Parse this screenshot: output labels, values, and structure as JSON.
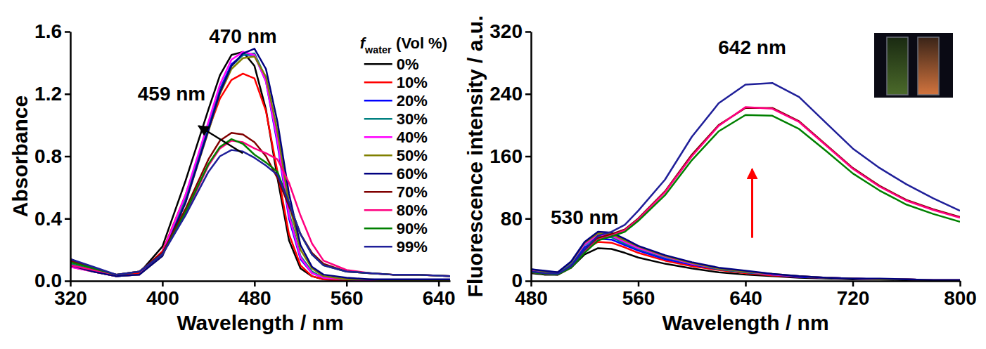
{
  "chart_data": [
    {
      "type": "line",
      "xlabel": "Wavelength / nm",
      "ylabel": "Absorbance",
      "x": [
        320,
        340,
        360,
        380,
        400,
        420,
        440,
        450,
        460,
        470,
        480,
        490,
        500,
        510,
        520,
        530,
        540,
        560,
        580,
        600,
        620,
        650
      ],
      "xlim": [
        320,
        650
      ],
      "xticks": [
        320,
        400,
        480,
        560,
        640
      ],
      "ylim": [
        0,
        1.6
      ],
      "yticks": [
        {
          "value": 0,
          "label": "0.0"
        },
        0.4,
        0.8,
        1.2,
        1.6
      ],
      "legend": "upper right",
      "legend_title": {
        "symbol": "f",
        "subscript": "water",
        "text": "(Vol %)"
      },
      "annotations": [
        {
          "text": "470 nm",
          "x": 470,
          "y": 1.57
        },
        {
          "text": "459 nm",
          "x": 408,
          "y": 1.2,
          "arrow": "from-lower-right"
        }
      ],
      "series": [
        {
          "name": "0%",
          "color": "#000000",
          "values": [
            0.14,
            0.08,
            0.03,
            0.05,
            0.22,
            0.64,
            1.1,
            1.32,
            1.45,
            1.47,
            1.38,
            1.1,
            0.66,
            0.26,
            0.08,
            0.03,
            0.01,
            0.0,
            0.0,
            0.0,
            0.0,
            0.0
          ]
        },
        {
          "name": "10%",
          "color": "#ff0000",
          "values": [
            0.09,
            0.06,
            0.03,
            0.05,
            0.19,
            0.55,
            0.97,
            1.17,
            1.29,
            1.33,
            1.3,
            1.09,
            0.7,
            0.3,
            0.1,
            0.03,
            0.01,
            0.0,
            0.0,
            0.0,
            0.0,
            0.0
          ]
        },
        {
          "name": "20%",
          "color": "#0000ff",
          "values": [
            0.1,
            0.06,
            0.03,
            0.04,
            0.17,
            0.53,
            0.99,
            1.23,
            1.39,
            1.45,
            1.45,
            1.28,
            0.88,
            0.4,
            0.14,
            0.05,
            0.02,
            0.01,
            0.0,
            0.0,
            0.0,
            0.0
          ]
        },
        {
          "name": "30%",
          "color": "#008080",
          "values": [
            0.11,
            0.07,
            0.03,
            0.04,
            0.17,
            0.52,
            0.98,
            1.22,
            1.38,
            1.45,
            1.46,
            1.3,
            0.92,
            0.44,
            0.16,
            0.06,
            0.02,
            0.01,
            0.0,
            0.0,
            0.0,
            0.0
          ]
        },
        {
          "name": "40%",
          "color": "#ff00ff",
          "values": [
            0.09,
            0.06,
            0.03,
            0.04,
            0.18,
            0.55,
            1.02,
            1.26,
            1.42,
            1.47,
            1.45,
            1.28,
            0.9,
            0.42,
            0.15,
            0.05,
            0.02,
            0.01,
            0.0,
            0.0,
            0.0,
            0.0
          ]
        },
        {
          "name": "50%",
          "color": "#808000",
          "values": [
            0.1,
            0.06,
            0.03,
            0.04,
            0.16,
            0.5,
            0.96,
            1.2,
            1.36,
            1.43,
            1.44,
            1.31,
            0.96,
            0.5,
            0.2,
            0.08,
            0.03,
            0.01,
            0.01,
            0.0,
            0.0,
            0.0
          ]
        },
        {
          "name": "60%",
          "color": "#000080",
          "values": [
            0.1,
            0.06,
            0.03,
            0.04,
            0.16,
            0.5,
            0.97,
            1.21,
            1.38,
            1.46,
            1.49,
            1.36,
            1.02,
            0.56,
            0.23,
            0.09,
            0.04,
            0.02,
            0.01,
            0.01,
            0.01,
            0.01
          ]
        },
        {
          "name": "70%",
          "color": "#800000",
          "values": [
            0.13,
            0.08,
            0.04,
            0.06,
            0.18,
            0.46,
            0.78,
            0.9,
            0.95,
            0.94,
            0.89,
            0.8,
            0.66,
            0.48,
            0.3,
            0.18,
            0.11,
            0.06,
            0.05,
            0.04,
            0.04,
            0.03
          ]
        },
        {
          "name": "80%",
          "color": "#ff0080",
          "values": [
            0.1,
            0.07,
            0.04,
            0.06,
            0.17,
            0.43,
            0.74,
            0.85,
            0.9,
            0.89,
            0.85,
            0.82,
            0.78,
            0.63,
            0.42,
            0.24,
            0.13,
            0.07,
            0.05,
            0.04,
            0.04,
            0.03
          ]
        },
        {
          "name": "90%",
          "color": "#008000",
          "values": [
            0.12,
            0.08,
            0.04,
            0.06,
            0.17,
            0.44,
            0.75,
            0.86,
            0.91,
            0.88,
            0.81,
            0.76,
            0.7,
            0.5,
            0.3,
            0.17,
            0.1,
            0.06,
            0.05,
            0.04,
            0.04,
            0.03
          ]
        },
        {
          "name": "99%",
          "color": "#1f1f99",
          "values": [
            0.14,
            0.09,
            0.04,
            0.06,
            0.17,
            0.42,
            0.7,
            0.8,
            0.84,
            0.83,
            0.79,
            0.74,
            0.68,
            0.5,
            0.3,
            0.17,
            0.1,
            0.06,
            0.05,
            0.04,
            0.04,
            0.03
          ]
        }
      ]
    },
    {
      "type": "line",
      "xlabel": "Wavelength / nm",
      "ylabel": "Fluorescence intensity / a.u.",
      "x": [
        480,
        490,
        500,
        510,
        520,
        530,
        540,
        550,
        560,
        580,
        600,
        620,
        640,
        660,
        680,
        700,
        720,
        740,
        760,
        780,
        800
      ],
      "xlim": [
        480,
        800
      ],
      "xticks": [
        480,
        560,
        640,
        720,
        800
      ],
      "ylim": [
        0,
        320
      ],
      "yticks": [
        0,
        80,
        160,
        240,
        320
      ],
      "annotations": [
        {
          "text": "642 nm",
          "x": 645,
          "y": 300,
          "arrow": "from-below"
        },
        {
          "text": "530 nm",
          "x": 520,
          "y": 82
        }
      ],
      "series": [
        {
          "color": "#000000",
          "values": [
            10,
            8,
            8,
            17,
            34,
            42,
            41,
            36,
            30,
            22,
            16,
            11,
            8,
            6,
            4,
            3,
            2,
            2,
            1,
            1,
            1
          ]
        },
        {
          "color": "#ff0000",
          "values": [
            12,
            10,
            9,
            20,
            40,
            50,
            49,
            43,
            36,
            26,
            19,
            14,
            10,
            7,
            5,
            4,
            3,
            2,
            2,
            1,
            1
          ]
        },
        {
          "color": "#0000ff",
          "values": [
            13,
            11,
            10,
            22,
            43,
            54,
            53,
            46,
            39,
            28,
            21,
            15,
            11,
            8,
            5,
            4,
            3,
            2,
            2,
            1,
            1
          ]
        },
        {
          "color": "#008080",
          "values": [
            14,
            11,
            10,
            23,
            46,
            57,
            56,
            48,
            41,
            30,
            22,
            15,
            11,
            8,
            6,
            4,
            3,
            2,
            2,
            1,
            1
          ]
        },
        {
          "color": "#ff00ff",
          "values": [
            14,
            12,
            11,
            24,
            47,
            59,
            58,
            50,
            42,
            31,
            22,
            16,
            12,
            8,
            6,
            4,
            3,
            2,
            2,
            1,
            1
          ]
        },
        {
          "color": "#808000",
          "values": [
            15,
            12,
            11,
            24,
            49,
            61,
            60,
            52,
            44,
            32,
            23,
            16,
            12,
            9,
            6,
            4,
            3,
            2,
            2,
            1,
            1
          ]
        },
        {
          "color": "#000080",
          "values": [
            15,
            13,
            11,
            25,
            50,
            63,
            62,
            54,
            45,
            33,
            24,
            17,
            13,
            9,
            6,
            4,
            3,
            3,
            2,
            1,
            1
          ]
        },
        {
          "color": "#800000",
          "values": [
            12,
            9,
            8,
            18,
            38,
            55,
            60,
            66,
            80,
            115,
            162,
            200,
            222,
            222,
            205,
            175,
            145,
            122,
            104,
            92,
            82
          ]
        },
        {
          "color": "#ff0080",
          "values": [
            11,
            9,
            8,
            17,
            37,
            53,
            58,
            65,
            79,
            114,
            160,
            199,
            223,
            221,
            204,
            174,
            144,
            121,
            103,
            91,
            81
          ]
        },
        {
          "color": "#008000",
          "values": [
            11,
            9,
            8,
            17,
            36,
            52,
            57,
            63,
            77,
            110,
            155,
            192,
            213,
            212,
            195,
            167,
            138,
            116,
            98,
            86,
            76
          ]
        },
        {
          "color": "#1f1f99",
          "values": [
            12,
            10,
            9,
            19,
            40,
            58,
            63,
            72,
            90,
            130,
            185,
            228,
            252,
            254,
            236,
            203,
            170,
            145,
            124,
            106,
            90
          ]
        }
      ]
    }
  ]
}
